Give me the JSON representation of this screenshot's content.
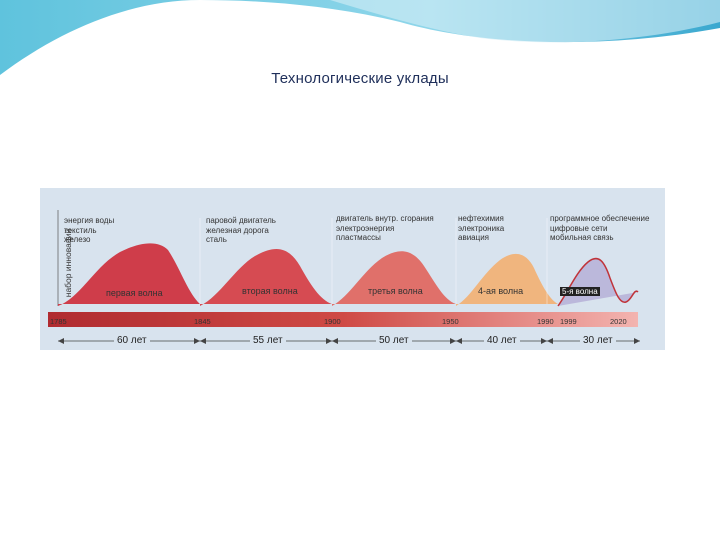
{
  "title": "Технологические уклады",
  "figure": {
    "y_axis_label": "набор инноваций",
    "waves": [
      {
        "name": "первая волна",
        "innovations": "энергия воды\nтекстиль\nжелезо",
        "color": "#cf3d4a"
      },
      {
        "name": "вторая волна",
        "innovations": "паровой двигатель\nжелезная дорога\nсталь",
        "color": "#d64b52"
      },
      {
        "name": "третья волна",
        "innovations": "двигатель внутр. сгорания\nэлектроэнергия\nпластмассы",
        "color": "#e0706a"
      },
      {
        "name": "4-ая волна",
        "innovations": "нефтехимия\nэлектроника\nавиация",
        "color": "#f0b57e"
      },
      {
        "name": "5-я волна",
        "innovations": "программное обеспечение\nцифровые сети\nмобильная связь",
        "color": "#b8b3d8"
      }
    ],
    "years": [
      "1785",
      "1845",
      "1900",
      "1950",
      "1990",
      "1999",
      "2020"
    ],
    "durations": [
      "60 лет",
      "55 лет",
      "50 лет",
      "40 лет",
      "30 лет"
    ]
  }
}
